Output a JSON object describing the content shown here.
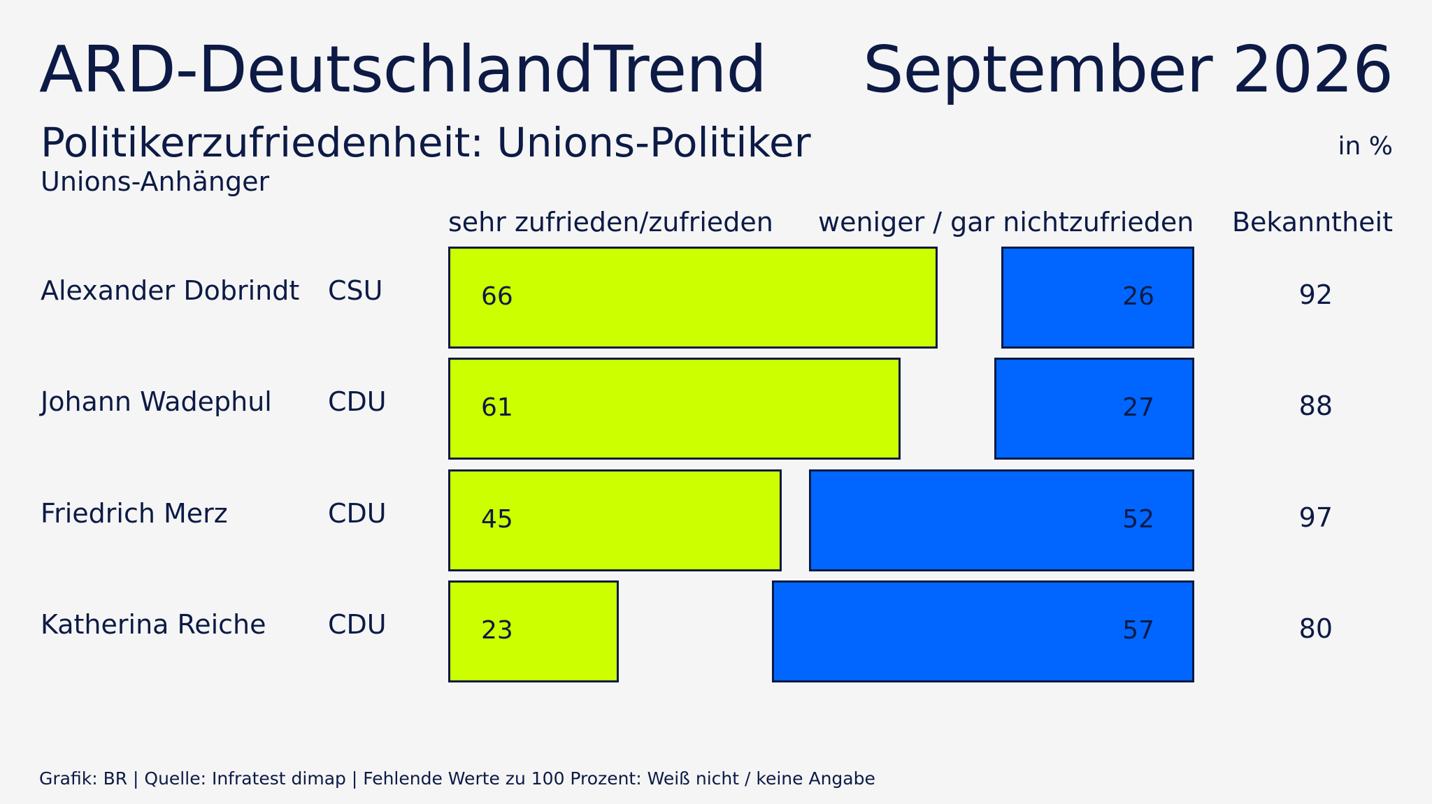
{
  "header": {
    "brand": "ARD-DeutschlandTrend",
    "date": "September 2026",
    "title": "Politikerzufriedenheit: Unions-Politiker",
    "subtitle": "Unions-Anhänger",
    "unit": "in %"
  },
  "columns": {
    "satisfied": "sehr zufrieden/zufrieden",
    "dissatisfied": "weniger / gar nichtzufrieden",
    "awareness": "Bekanntheit"
  },
  "chart_data": {
    "type": "bar",
    "orientation": "horizontal",
    "categories": [
      "Alexander Dobrindt",
      "Johann Wadephul",
      "Friedrich Merz",
      "Katherina Reiche"
    ],
    "parties": [
      "CSU",
      "CDU",
      "CDU",
      "CDU"
    ],
    "series": [
      {
        "name": "sehr zufrieden/zufrieden",
        "values": [
          66,
          61,
          45,
          23
        ],
        "color": "#ccff00"
      },
      {
        "name": "weniger / gar nichtzufrieden",
        "values": [
          26,
          27,
          52,
          57
        ],
        "color": "#0066ff"
      }
    ],
    "awareness": [
      92,
      88,
      97,
      80
    ],
    "unit": "in %",
    "xlim": [
      0,
      100
    ]
  },
  "footer": "Grafik: BR | Quelle: Infratest dimap | Fehlende Werte zu 100 Prozent: Weiß nicht / keine Angabe",
  "colors": {
    "background": "#f5f5f5",
    "text": "#0c1a45",
    "satisfied": "#ccff00",
    "dissatisfied": "#0066ff"
  }
}
